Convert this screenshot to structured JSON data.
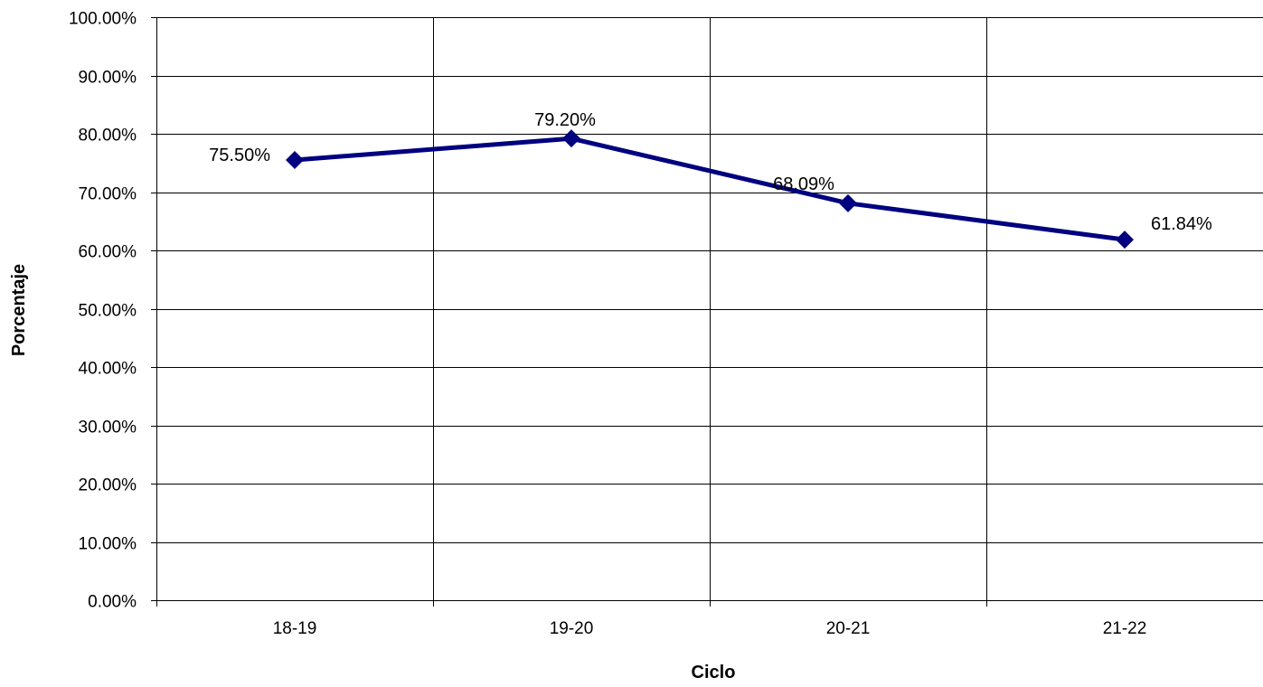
{
  "chart_data": {
    "type": "line",
    "title": "",
    "xlabel": "Ciclo",
    "ylabel": "Porcentaje",
    "categories": [
      "18-19",
      "19-20",
      "20-21",
      "21-22"
    ],
    "series": [
      {
        "values": [
          75.5,
          79.2,
          68.09,
          61.84
        ],
        "data_labels": [
          "75.50%",
          "79.20%",
          "68.09%",
          "61.84%"
        ],
        "color": "#000080",
        "marker": "diamond"
      }
    ],
    "ylim": [
      0,
      100
    ],
    "ytick_labels": [
      "0.00%",
      "10.00%",
      "20.00%",
      "30.00%",
      "40.00%",
      "50.00%",
      "60.00%",
      "70.00%",
      "80.00%",
      "90.00%",
      "100.00%"
    ],
    "grid": true,
    "legend": "none"
  }
}
